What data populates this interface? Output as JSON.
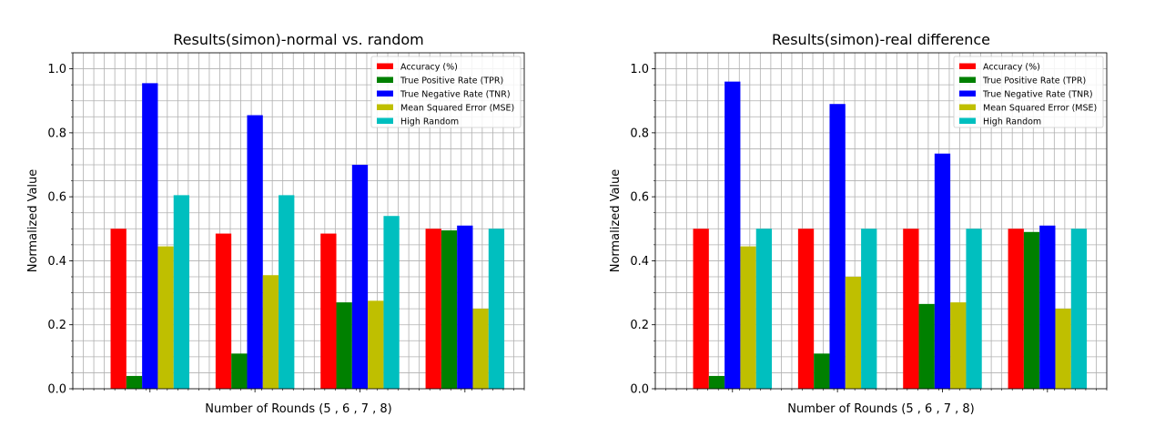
{
  "chart_data": [
    {
      "type": "bar",
      "title": "Results(simon)-normal vs. random",
      "xlabel": "Number of Rounds (5 , 6 , 7 , 8)",
      "ylabel": "Normalized Value",
      "ylim": [
        0,
        1.05
      ],
      "yticks": [
        "0.0",
        "0.2",
        "0.4",
        "0.6",
        "0.8",
        "1.0"
      ],
      "grid": true,
      "legend_position": "top-right",
      "categories": [
        "5",
        "6",
        "7",
        "8"
      ],
      "series": [
        {
          "name": "Accuracy (%)",
          "color": "#ff0000",
          "values": [
            0.5,
            0.485,
            0.485,
            0.5
          ]
        },
        {
          "name": "True Positive Rate (TPR)",
          "color": "#008000",
          "values": [
            0.04,
            0.11,
            0.27,
            0.495
          ]
        },
        {
          "name": "True Negative Rate (TNR)",
          "color": "#0000ff",
          "values": [
            0.955,
            0.855,
            0.7,
            0.51
          ]
        },
        {
          "name": "Mean Squared Error (MSE)",
          "color": "#bfbf00",
          "values": [
            0.445,
            0.355,
            0.275,
            0.25
          ]
        },
        {
          "name": "High Random",
          "color": "#00bfbf",
          "values": [
            0.605,
            0.605,
            0.54,
            0.5
          ]
        }
      ]
    },
    {
      "type": "bar",
      "title": "Results(simon)-real difference",
      "xlabel": "Number of Rounds (5 , 6 , 7 , 8)",
      "ylabel": "Normalized Value",
      "ylim": [
        0,
        1.05
      ],
      "yticks": [
        "0.0",
        "0.2",
        "0.4",
        "0.6",
        "0.8",
        "1.0"
      ],
      "grid": true,
      "legend_position": "top-right",
      "categories": [
        "5",
        "6",
        "7",
        "8"
      ],
      "series": [
        {
          "name": "Accuracy (%)",
          "color": "#ff0000",
          "values": [
            0.5,
            0.5,
            0.5,
            0.5
          ]
        },
        {
          "name": "True Positive Rate (TPR)",
          "color": "#008000",
          "values": [
            0.04,
            0.11,
            0.265,
            0.49
          ]
        },
        {
          "name": "True Negative Rate (TNR)",
          "color": "#0000ff",
          "values": [
            0.96,
            0.89,
            0.735,
            0.51
          ]
        },
        {
          "name": "Mean Squared Error (MSE)",
          "color": "#bfbf00",
          "values": [
            0.445,
            0.35,
            0.27,
            0.25
          ]
        },
        {
          "name": "High Random",
          "color": "#00bfbf",
          "values": [
            0.5,
            0.5,
            0.5,
            0.5
          ]
        }
      ]
    }
  ]
}
